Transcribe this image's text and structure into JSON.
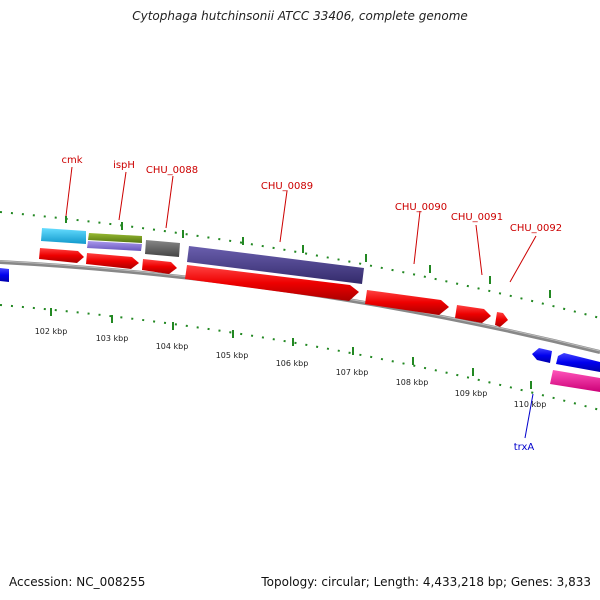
{
  "title": "Cytophaga hutchinsonii ATCC 33406, complete genome",
  "footer": {
    "accession": "Accession: NC_008255",
    "summary": "Topology: circular; Length: 4,433,218 bp; Genes: 3,833"
  },
  "scale": {
    "unit": "kbp",
    "ticks": [
      {
        "label": "102 kbp",
        "value": 102
      },
      {
        "label": "103 kbp",
        "value": 103
      },
      {
        "label": "104 kbp",
        "value": 104
      },
      {
        "label": "105 kbp",
        "value": 105
      },
      {
        "label": "106 kbp",
        "value": 106
      },
      {
        "label": "107 kbp",
        "value": 107
      },
      {
        "label": "108 kbp",
        "value": 108
      },
      {
        "label": "109 kbp",
        "value": 109
      },
      {
        "label": "110 kbp",
        "value": 110
      }
    ]
  },
  "gene_labels": [
    {
      "name": "cmk",
      "color": "#cc0000"
    },
    {
      "name": "ispH",
      "color": "#cc0000"
    },
    {
      "name": "CHU_0088",
      "color": "#cc0000"
    },
    {
      "name": "CHU_0089",
      "color": "#cc0000"
    },
    {
      "name": "CHU_0090",
      "color": "#cc0000"
    },
    {
      "name": "CHU_0091",
      "color": "#cc0000"
    },
    {
      "name": "CHU_0092",
      "color": "#cc0000"
    },
    {
      "name": "trxA",
      "color": "#0000cc"
    }
  ],
  "colors": {
    "cds_forward": "#ee0000",
    "cds_reverse": "#0000ee",
    "cog_cyan": "#22bbee",
    "cog_olive": "#779922",
    "cog_lavender": "#8877dd",
    "cog_gray": "#666666",
    "cog_indigo": "#4a3f8a",
    "cog_magenta": "#ee1199",
    "backbone": "#888888",
    "tick_marks": "#228822"
  }
}
